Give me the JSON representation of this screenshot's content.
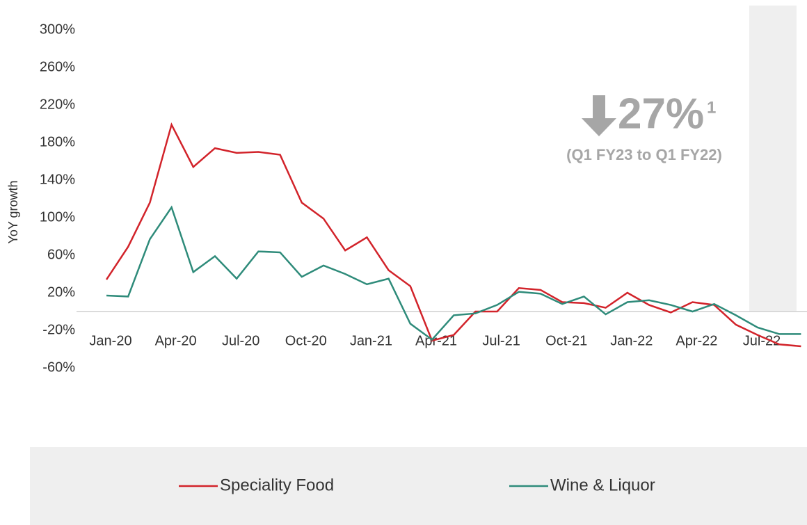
{
  "chart_data": {
    "type": "line",
    "y_axis_label": "YoY growth",
    "categories": [
      "Jan-20",
      null,
      null,
      "Apr-20",
      null,
      null,
      "Jul-20",
      null,
      null,
      "Oct-20",
      null,
      null,
      "Jan-21",
      null,
      null,
      "Apr-21",
      null,
      null,
      "Jul-21",
      null,
      null,
      "Oct-21",
      null,
      null,
      "Jan-22",
      null,
      null,
      "Apr-22",
      null,
      null,
      "Jul-22",
      null,
      null
    ],
    "series": [
      {
        "name": "Speciality Food",
        "color": "#d2232a",
        "values": [
          34,
          69,
          116,
          199,
          154,
          174,
          169,
          170,
          167,
          116,
          99,
          65,
          79,
          44,
          27,
          -31,
          -25,
          0,
          0,
          25,
          23,
          10,
          9,
          4,
          20,
          7,
          -1,
          10,
          7,
          -14,
          -25,
          -35,
          -37
        ]
      },
      {
        "name": "Wine & Liquor",
        "color": "#2e8b7a",
        "values": [
          17,
          16,
          77,
          111,
          42,
          59,
          35,
          64,
          63,
          37,
          49,
          40,
          29,
          35,
          -13,
          -30,
          -4,
          -2,
          7,
          21,
          19,
          8,
          16,
          -3,
          10,
          12,
          7,
          0,
          8,
          -4,
          -17,
          -24,
          -24
        ]
      }
    ],
    "ylim": [
      -60,
      300
    ],
    "yticks": [
      {
        "value": -60,
        "label": "-60%"
      },
      {
        "value": -20,
        "label": "-20%"
      },
      {
        "value": 20,
        "label": "20%"
      },
      {
        "value": 60,
        "label": "60%"
      },
      {
        "value": 100,
        "label": "100%"
      },
      {
        "value": 140,
        "label": "140%"
      },
      {
        "value": 180,
        "label": "180%"
      },
      {
        "value": 220,
        "label": "220%"
      },
      {
        "value": 260,
        "label": "260%"
      },
      {
        "value": 300,
        "label": "300%"
      }
    ],
    "annotation": {
      "value": "27%",
      "footnote": "1",
      "text": "(Q1 FY23 to Q1 FY22)"
    },
    "legend": "bottom"
  }
}
